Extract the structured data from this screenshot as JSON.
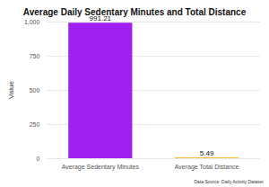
{
  "chart_data": {
    "type": "bar",
    "title": "Average Daily Sedentary Minutes and Total Distance",
    "y_label": "Value",
    "caption": "Data Source: Daily Activity Dataset",
    "categories": [
      "Average Sedentary Minutes",
      "Average Total Distance"
    ],
    "values": [
      991.21,
      5.49
    ],
    "colors": [
      "#a020f0",
      "#ffa500"
    ],
    "ylim": [
      0,
      1000
    ],
    "yticks": [
      0,
      250,
      500,
      750,
      1000
    ],
    "grid": true,
    "data_labels": true
  }
}
